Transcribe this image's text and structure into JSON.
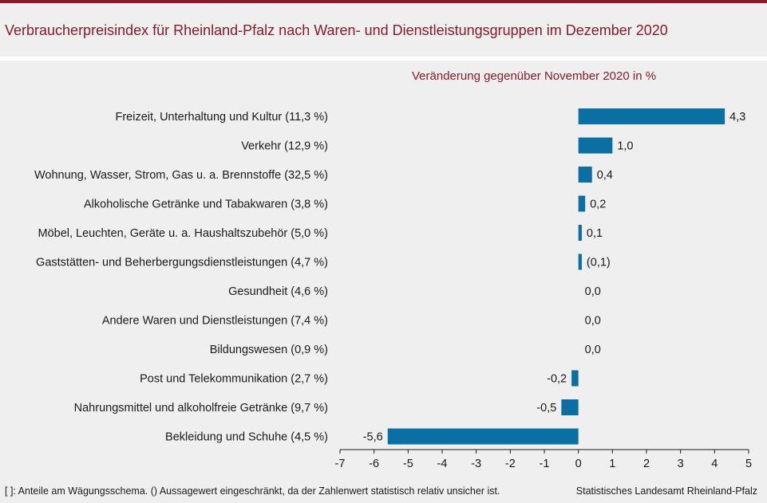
{
  "title": "Verbraucherpreisindex für Rheinland-Pfalz nach Waren- und Dienstleistungsgruppen im Dezember 2020",
  "subtitle": "Veränderung gegenüber November 2020 in %",
  "footnote": "[ ]: Anteile am Wägungsschema. () Aussagewert eingeschränkt, da der Zahlenwert statistisch relativ unsicher ist.",
  "source": "Statistisches Landesamt Rheinland-Pfalz",
  "colors": {
    "bar": "#0a6fa3",
    "title": "#8b1a2c",
    "background": "#efefef"
  },
  "chart_data": {
    "type": "bar",
    "orientation": "horizontal",
    "categories": [
      "Freizeit, Unterhaltung und Kultur (11,3 %)",
      "Verkehr (12,9 %)",
      "Wohnung, Wasser, Strom, Gas u. a. Brennstoffe (32,5 %)",
      "Alkoholische Getränke und Tabakwaren (3,8 %)",
      "Möbel, Leuchten, Geräte u. a. Haushaltszubehör (5,0 %)",
      "Gaststätten- und Beherbergungsdienstleistungen (4,7 %)",
      "Gesundheit (4,6 %)",
      "Andere Waren und Dienstleistungen (7,4 %)",
      "Bildungswesen (0,9 %)",
      "Post und Telekommunikation (2,7 %)",
      "Nahrungsmittel und alkoholfreie Getränke (9,7 %)",
      "Bekleidung und Schuhe (4,5 %)"
    ],
    "values": [
      4.3,
      1.0,
      0.4,
      0.2,
      0.1,
      0.1,
      0.0,
      0.0,
      0.0,
      -0.2,
      -0.5,
      -5.6
    ],
    "value_labels": [
      "4,3",
      "1,0",
      "0,4",
      "0,2",
      "0,1",
      "(0,1)",
      "0,0",
      "0,0",
      "0,0",
      "-0,2",
      "-0,5",
      "-5,6"
    ],
    "xlim": [
      -7,
      5
    ],
    "xticks": [
      -7,
      -6,
      -5,
      -4,
      -3,
      -2,
      -1,
      0,
      1,
      2,
      3,
      4,
      5
    ],
    "xtick_labels": [
      "-7",
      "-6",
      "-5",
      "-4",
      "-3",
      "-2",
      "-1",
      "0",
      "1",
      "2",
      "3",
      "4",
      "5"
    ],
    "grid": false
  }
}
